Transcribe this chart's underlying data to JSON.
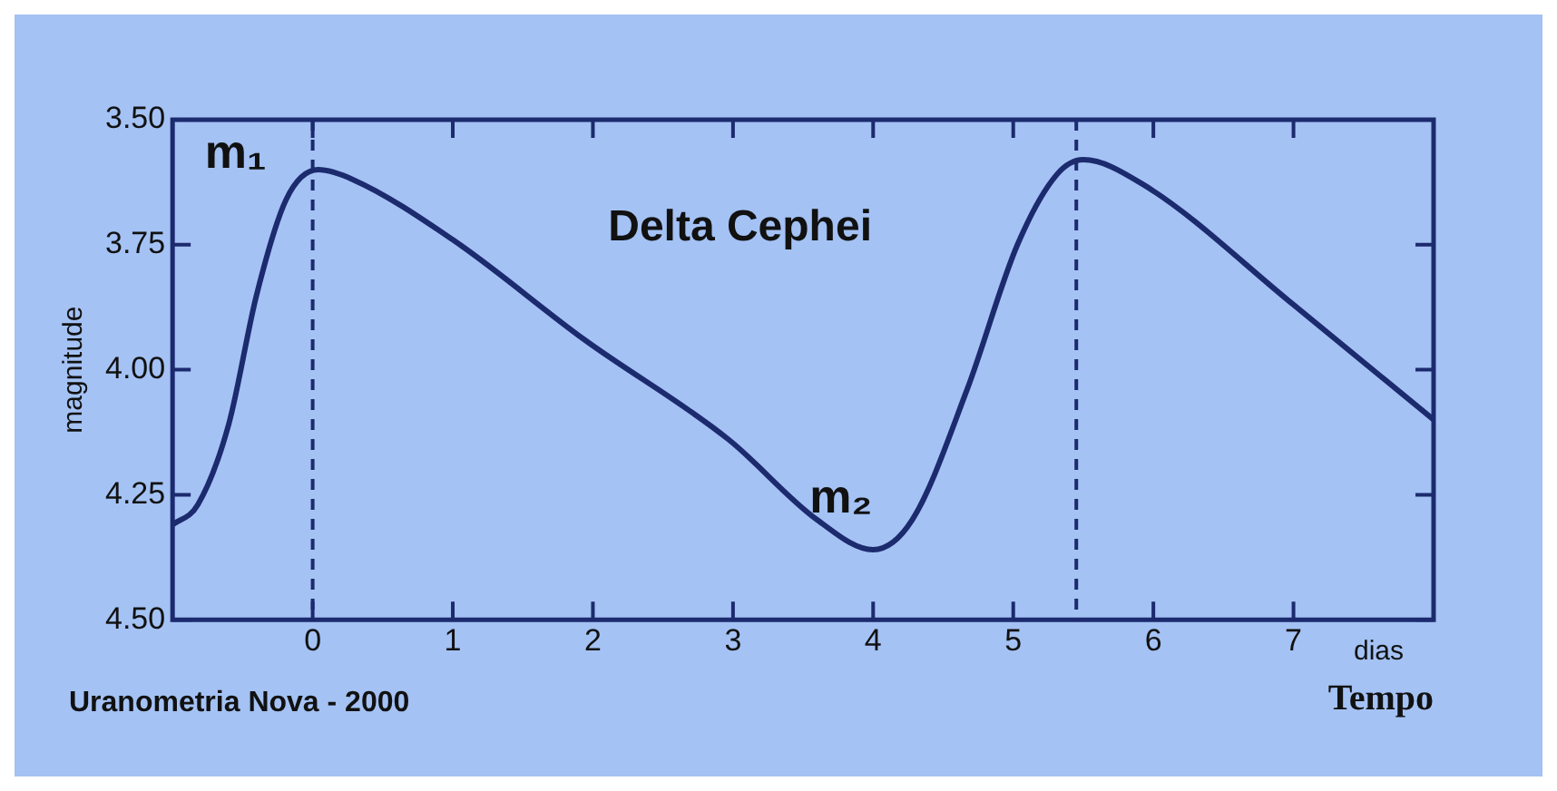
{
  "chart_data": {
    "type": "line",
    "title": "Delta Cephei",
    "xlabel": "Tempo",
    "ylabel": "magnitude",
    "x": [
      -1.0,
      -0.82,
      -0.6,
      -0.4,
      -0.19,
      0.04,
      0.29,
      1.0,
      1.94,
      2.97,
      3.6,
      4.0,
      4.28,
      4.67,
      5.03,
      5.31,
      5.5,
      5.93,
      7.0,
      8.0
    ],
    "series": [
      {
        "color": "#1c2a6e",
        "values": [
          4.31,
          4.27,
          4.11,
          3.85,
          3.66,
          3.6,
          3.62,
          3.74,
          3.94,
          4.14,
          4.3,
          4.36,
          4.3,
          4.04,
          3.75,
          3.61,
          3.58,
          3.63,
          3.87,
          4.1
        ]
      }
    ],
    "xlim": [
      -1,
      8
    ],
    "xticks": [
      0,
      1,
      2,
      3,
      4,
      5,
      6,
      7
    ],
    "ylim": [
      4.5,
      3.5
    ],
    "yticks": [
      {
        "value": 3.5,
        "label": "3.50"
      },
      {
        "value": 3.75,
        "label": "3.75"
      },
      {
        "value": 4.0,
        "label": "4.00"
      },
      {
        "value": 4.25,
        "label": "4.25"
      },
      {
        "value": 4.5,
        "label": "4.50"
      }
    ],
    "ref_lines": [
      {
        "axis": "x",
        "value": 0,
        "line_style": "dashed",
        "color": "#1c2a6e"
      },
      {
        "axis": "x",
        "value": 5.45,
        "line_style": "dashed",
        "color": "#1c2a6e"
      }
    ],
    "annotations": [
      "m₁",
      "m₂",
      "dias",
      "Uranometria Nova - 2000"
    ],
    "marker": "none",
    "line_style": "solid",
    "legend": false,
    "grid": false
  }
}
